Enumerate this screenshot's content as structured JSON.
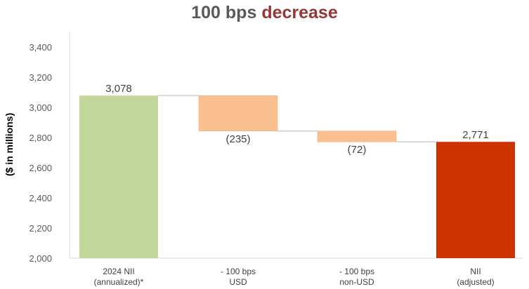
{
  "chart_data": {
    "type": "bar",
    "subtype": "waterfall",
    "title_main": "100 bps",
    "title_accent": "decrease",
    "ylabel": "($ in millions)",
    "ylim": [
      2000,
      3400
    ],
    "ytick_labels": [
      "2,000",
      "2,200",
      "2,400",
      "2,600",
      "2,800",
      "3,000",
      "3,200",
      "3,400"
    ],
    "ytick_values": [
      2000,
      2200,
      2400,
      2600,
      2800,
      3000,
      3200,
      3400
    ],
    "grid": false,
    "categories": [
      {
        "line1": "2024 NII",
        "line2": "(annualized)*"
      },
      {
        "line1": "- 100 bps",
        "line2": "USD"
      },
      {
        "line1": "- 100 bps",
        "line2": "non-USD"
      },
      {
        "line1": "NII",
        "line2": "(adjusted)"
      }
    ],
    "bars": [
      {
        "kind": "total",
        "start": 2000,
        "end": 3078,
        "label": "3,078",
        "color": "#c4d79b"
      },
      {
        "kind": "change",
        "start": 3078,
        "end": 2843,
        "label": "(235)",
        "color": "#fac090"
      },
      {
        "kind": "change",
        "start": 2843,
        "end": 2771,
        "label": "(72)",
        "color": "#fac090"
      },
      {
        "kind": "total",
        "start": 2000,
        "end": 2771,
        "label": "2,771",
        "color": "#cc3300"
      }
    ]
  }
}
